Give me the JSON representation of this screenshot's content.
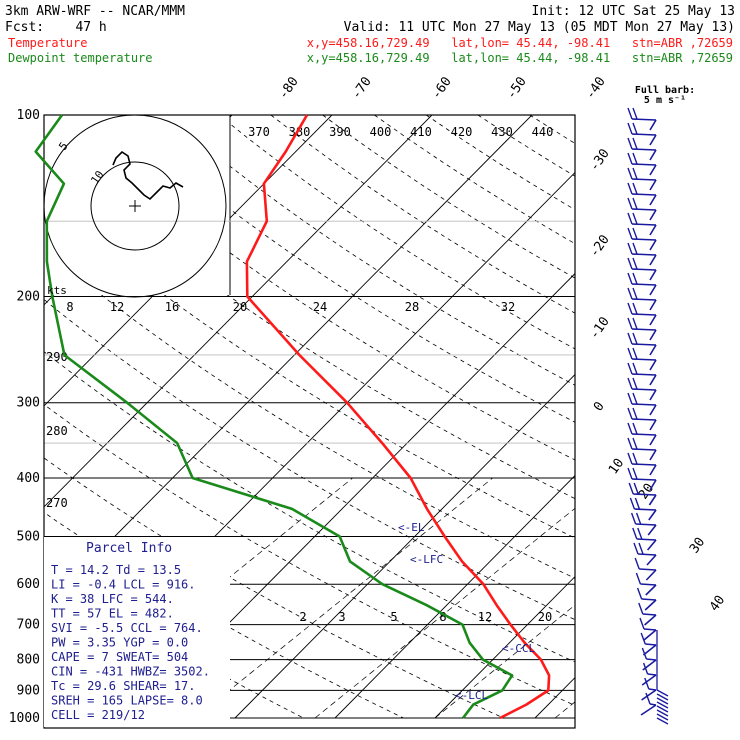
{
  "header": {
    "model": "3km ARW-WRF -- NCAR/MMM",
    "init": "Init: 12 UTC Sat 25 May 13",
    "fcst": "Fcst:    47 h",
    "valid": "Valid: 11 UTC Mon 27 May 13 (05 MDT Mon 27 May 13)",
    "temp_legend": "Temperature",
    "temp_loc": "x,y=458.16,729.49   lat,lon= 45.44, -98.41   stn=ABR ,72659",
    "dew_legend": "Dewpoint temperature",
    "dew_loc": "x,y=458.16,729.49   lat,lon= 45.44, -98.41   stn=ABR ,72659"
  },
  "colors": {
    "temperature": "#ff1a1a",
    "dewpoint": "#1a8a1a",
    "parcel_text": "#202090",
    "grid": "#000000"
  },
  "barb_legend": {
    "title": "Full barb:",
    "value": "5 m s⁻¹"
  },
  "hodograph": {
    "unit": "kts",
    "ring_labels": [
      "5",
      "10"
    ]
  },
  "parcel_info": {
    "title": "Parcel Info",
    "rows": [
      "T   =   14.2  Td =  13.5",
      "LI  =   -0.4  LCL =  916.",
      "K   =     38  LFC =  544.",
      "TT  =     57  EL  =  482.",
      "SVI =   -5.5  CCL =  764.",
      "PW  =   3.35  YGP =   0.0",
      "CAPE =     7  SWEAT=  504",
      "CIN  =  -431  HWBZ= 3502.",
      "Tc  =   29.6  SHEAR=  17.",
      "SREH =   165  LAPSE=  8.0",
      "CELL = 219/12"
    ]
  },
  "level_labels": {
    "el": "<-EL",
    "lfc": "<-LFC",
    "ccl": "<-CCL",
    "lcl": "<-LCL"
  },
  "chart_data": {
    "type": "line",
    "y_axis": {
      "label_values": [
        100,
        200,
        300,
        400,
        500,
        600,
        700,
        800,
        900,
        1000
      ],
      "unit": "hPa",
      "scale": "log"
    },
    "isotherm_labels": [
      "-80",
      "-70",
      "-60",
      "-50",
      "-40",
      "-30",
      "-20",
      "-10",
      "0",
      "10",
      "20",
      "30",
      "40"
    ],
    "theta_labels": [
      "370",
      "380",
      "390",
      "400",
      "410",
      "420",
      "430",
      "440"
    ],
    "upper_temp_labels": [
      "8",
      "12",
      "16",
      "20",
      "24",
      "28",
      "32"
    ],
    "theta_left_labels": [
      "290",
      "280",
      "270"
    ],
    "mixing_ratio_labels": [
      "2",
      "3",
      "5",
      "8",
      "12",
      "20"
    ],
    "series": [
      {
        "name": "Temperature",
        "points": [
          {
            "p": 1000,
            "t": 16.5
          },
          {
            "p": 950,
            "t": 17.8
          },
          {
            "p": 900,
            "t": 18.6
          },
          {
            "p": 850,
            "t": 17.2
          },
          {
            "p": 800,
            "t": 14.8
          },
          {
            "p": 750,
            "t": 11.5
          },
          {
            "p": 700,
            "t": 8.3
          },
          {
            "p": 650,
            "t": 5.0
          },
          {
            "p": 600,
            "t": 1.6
          },
          {
            "p": 550,
            "t": -2.8
          },
          {
            "p": 500,
            "t": -7.0
          },
          {
            "p": 450,
            "t": -11.5
          },
          {
            "p": 400,
            "t": -16.2
          },
          {
            "p": 350,
            "t": -22.5
          },
          {
            "p": 300,
            "t": -30.0
          },
          {
            "p": 250,
            "t": -39.5
          },
          {
            "p": 200,
            "t": -50.5
          },
          {
            "p": 175,
            "t": -54.0
          },
          {
            "p": 150,
            "t": -56.0
          },
          {
            "p": 130,
            "t": -60.0
          },
          {
            "p": 115,
            "t": -61.0
          },
          {
            "p": 100,
            "t": -62.5
          }
        ]
      },
      {
        "name": "Dewpoint temperature",
        "points": [
          {
            "p": 1000,
            "t": 12.8
          },
          {
            "p": 950,
            "t": 12.5
          },
          {
            "p": 900,
            "t": 14.0
          },
          {
            "p": 850,
            "t": 13.5
          },
          {
            "p": 800,
            "t": 9.0
          },
          {
            "p": 750,
            "t": 6.0
          },
          {
            "p": 700,
            "t": 3.5
          },
          {
            "p": 650,
            "t": -2.0
          },
          {
            "p": 600,
            "t": -8.5
          },
          {
            "p": 550,
            "t": -14.0
          },
          {
            "p": 500,
            "t": -17.5
          },
          {
            "p": 450,
            "t": -25.0
          },
          {
            "p": 400,
            "t": -38.0
          },
          {
            "p": 350,
            "t": -43.0
          },
          {
            "p": 300,
            "t": -52.0
          },
          {
            "p": 250,
            "t": -63.0
          },
          {
            "p": 200,
            "t": -70.0
          },
          {
            "p": 175,
            "t": -74.0
          },
          {
            "p": 150,
            "t": -78.0
          },
          {
            "p": 130,
            "t": -80.0
          },
          {
            "p": 115,
            "t": -86.0
          },
          {
            "p": 100,
            "t": -87.0
          }
        ]
      }
    ]
  }
}
